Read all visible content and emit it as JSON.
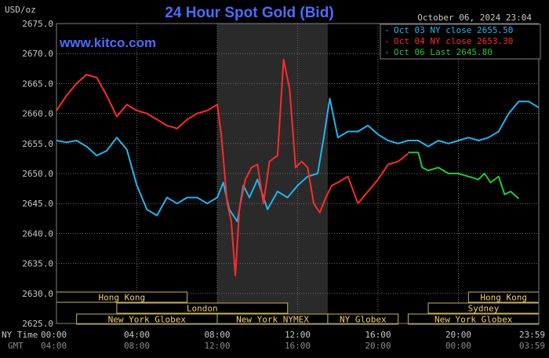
{
  "chart_data": {
    "type": "line",
    "title": "24 Hour Spot Gold (Bid)",
    "site": "www.kitco.com",
    "datetime": "October 06, 2024 23:04",
    "ylabel": "USD/oz",
    "ylim": [
      2625,
      2675
    ],
    "yticks": [
      "2675.0",
      "2670.0",
      "2665.0",
      "2660.0",
      "2655.0",
      "2650.0",
      "2645.0",
      "2640.0",
      "2635.0",
      "2630.0",
      "2625.0"
    ],
    "x_ny_labels": [
      "00:00",
      "04:00",
      "08:00",
      "12:00",
      "16:00",
      "20:00",
      "23:59"
    ],
    "x_gmt_labels": [
      "04:00",
      "08:00",
      "12:00",
      "16:00",
      "20:00",
      "00:00",
      "03:59"
    ],
    "row_labels": [
      "NY Time",
      "GMT"
    ],
    "grid": true,
    "legend_position": "top-right",
    "series": [
      {
        "name": "Oct 03 NY close 2655.50",
        "color": "#22b4ee",
        "x": [
          0,
          0.5,
          1,
          1.5,
          2,
          2.5,
          3,
          3.5,
          4,
          4.5,
          5,
          5.5,
          6,
          6.5,
          7,
          7.5,
          8,
          8.3,
          8.6,
          9,
          9.3,
          9.6,
          10,
          10.5,
          11,
          11.5,
          12,
          12.5,
          13,
          13.3,
          13.6,
          14,
          14.5,
          15,
          15.5,
          16,
          16.5,
          17,
          17.5,
          18,
          18.5,
          19,
          19.5,
          20,
          20.5,
          21,
          21.5,
          22,
          22.5,
          23,
          23.5,
          24
        ],
        "values": [
          2655.5,
          2655.2,
          2655.5,
          2654.5,
          2653,
          2653.8,
          2656,
          2654,
          2648,
          2644,
          2643,
          2646,
          2645,
          2646,
          2646,
          2645,
          2646,
          2648.5,
          2644,
          2642,
          2648,
          2646,
          2649,
          2644,
          2647,
          2646,
          2648,
          2649.5,
          2650,
          2656,
          2662.5,
          2656,
          2657,
          2657,
          2658,
          2656.5,
          2655.5,
          2655,
          2655.5,
          2655.5,
          2654.5,
          2655.5,
          2655,
          2655.5,
          2656,
          2655.5,
          2656,
          2657,
          2660,
          2662,
          2662,
          2661
        ]
      },
      {
        "name": "Oct 04 NY close 2653.30",
        "color": "#ff2a2a",
        "x": [
          0,
          0.5,
          1,
          1.5,
          2,
          2.5,
          3,
          3.5,
          4,
          4.5,
          5,
          5.5,
          6,
          6.5,
          7,
          7.5,
          8,
          8.2,
          8.5,
          8.7,
          8.9,
          9.1,
          9.4,
          9.7,
          10,
          10.3,
          10.6,
          11,
          11.3,
          11.6,
          11.9,
          12.2,
          12.5,
          12.8,
          13.1,
          13.4,
          13.7,
          14,
          14.5,
          15,
          15.5,
          16,
          16.5,
          17,
          17.5
        ],
        "values": [
          2660.5,
          2663,
          2665,
          2666.5,
          2666,
          2663,
          2659.5,
          2661.5,
          2660.5,
          2660,
          2659,
          2658,
          2657.5,
          2659,
          2660,
          2660.5,
          2661.5,
          2656.5,
          2645,
          2642,
          2633,
          2644,
          2649,
          2651,
          2651.5,
          2645,
          2652,
          2653,
          2669,
          2664,
          2651,
          2652,
          2651,
          2645,
          2643.5,
          2646,
          2648,
          2648.5,
          2649.5,
          2645,
          2647,
          2649,
          2651.5,
          2652,
          2653.3
        ]
      },
      {
        "name": "Oct 06 Last 2645.80",
        "color": "#22c83a",
        "x": [
          17.5,
          18,
          18.2,
          18.5,
          19,
          19.5,
          20,
          20.5,
          21,
          21.3,
          21.6,
          22,
          22.3,
          22.6,
          23
        ],
        "values": [
          2653.5,
          2653.5,
          2651,
          2650.5,
          2651,
          2650,
          2650,
          2649.5,
          2649,
          2650,
          2648.5,
          2649.5,
          2646.5,
          2647,
          2645.8
        ]
      }
    ],
    "sessions": [
      {
        "name": "Hong Kong",
        "row": 0,
        "start": 0,
        "end": 6.5
      },
      {
        "name": "Hong Kong",
        "row": 0,
        "start": 20.5,
        "end": 24
      },
      {
        "name": "Sydney",
        "row": 1,
        "start": 18.5,
        "end": 24
      },
      {
        "name": "London",
        "row": 1,
        "start": 3,
        "end": 11.5
      },
      {
        "name": "New York Globex",
        "row": 2,
        "start": 1,
        "end": 8
      },
      {
        "name": "New York NYMEX",
        "row": 2,
        "start": 8,
        "end": 13.5
      },
      {
        "name": "NY Globex",
        "row": 2,
        "start": 13.5,
        "end": 17
      },
      {
        "name": "New York Globex",
        "row": 2,
        "start": 17.5,
        "end": 24
      }
    ],
    "highlight_range": [
      8,
      13.5
    ]
  }
}
